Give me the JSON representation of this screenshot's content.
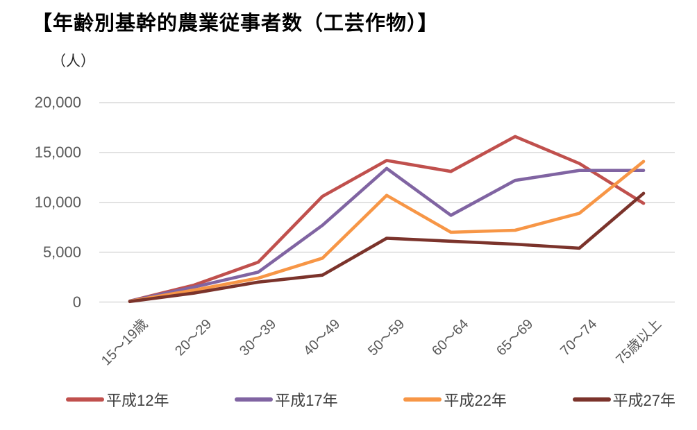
{
  "chart_data": {
    "type": "line",
    "title": "【年齢別基幹的農業従事者数（工芸作物）】",
    "unit_label": "（人）",
    "categories": [
      "15～19歳",
      "20～29",
      "30～39",
      "40～49",
      "50～59",
      "60～64",
      "65～69",
      "70～74",
      "75歳以上"
    ],
    "series": [
      {
        "name": "平成12年",
        "color": "#C0504D",
        "values": [
          100,
          1700,
          4000,
          10600,
          14200,
          13100,
          16600,
          13900,
          9900
        ]
      },
      {
        "name": "平成17年",
        "color": "#8064A2",
        "values": [
          100,
          1500,
          3000,
          7700,
          13400,
          8700,
          12200,
          13200,
          13200
        ]
      },
      {
        "name": "平成22年",
        "color": "#F79646",
        "values": [
          80,
          1200,
          2400,
          4400,
          10700,
          7000,
          7200,
          8900,
          14100
        ]
      },
      {
        "name": "平成27年",
        "color": "#7B332B",
        "values": [
          50,
          900,
          2000,
          2700,
          6400,
          6100,
          5800,
          5400,
          10900
        ]
      }
    ],
    "yticks": [
      {
        "value": 0,
        "label": "0"
      },
      {
        "value": 5000,
        "label": "5,000"
      },
      {
        "value": 10000,
        "label": "10,000"
      },
      {
        "value": 15000,
        "label": "15,000"
      },
      {
        "value": 20000,
        "label": "20,000"
      }
    ],
    "ylim": [
      0,
      20000
    ],
    "xlabel": "",
    "ylabel": "人",
    "grid": true,
    "legend_position": "bottom",
    "gridline_color": "#D9D9D9"
  }
}
